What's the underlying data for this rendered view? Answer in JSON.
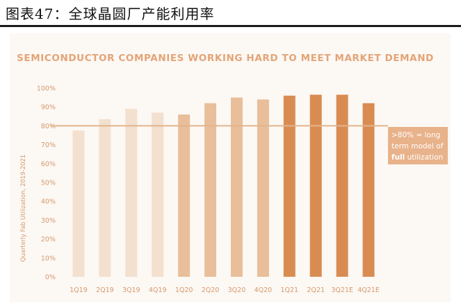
{
  "caption": "图表47：全球晶圆厂产能利用率",
  "chart_data": {
    "type": "bar",
    "title": "SEMICONDUCTOR COMPANIES WORKING HARD TO MEET MARKET DEMAND",
    "ylabel": "Quarterly Fab Utilization, 2019-2021",
    "xlabel": "",
    "categories": [
      "1Q19",
      "2Q19",
      "3Q19",
      "4Q19",
      "1Q20",
      "2Q20",
      "3Q20",
      "4Q20",
      "1Q21",
      "2Q21",
      "3Q21E",
      "4Q21E"
    ],
    "values": [
      77.5,
      83.5,
      89,
      87,
      86,
      92,
      95,
      94,
      96,
      96.5,
      96.5,
      92
    ],
    "bar_colors": [
      "#f3e0cf",
      "#f3e0cf",
      "#f3e0cf",
      "#f3e0cf",
      "#e8bf9a",
      "#e8bf9a",
      "#e8bf9a",
      "#e8bf9a",
      "#d98c52",
      "#d98c52",
      "#d98c52",
      "#d98c52"
    ],
    "ylim": [
      0,
      100
    ],
    "yticks": [
      "0%",
      "10%",
      "20%",
      "30%",
      "40%",
      "50%",
      "60%",
      "70%",
      "80%",
      "90%",
      "100%"
    ],
    "reference_line": {
      "value": 80,
      "color": "#e3b48c"
    },
    "annotation": {
      "line1": ">80% = long",
      "line2": "term model of",
      "line3_bold": "full",
      "line3_rest": " utilization",
      "color": "#e8b28a"
    },
    "title_color": "#e3a477",
    "tick_color": "#d59a6c",
    "grid": false,
    "legend": "none"
  }
}
